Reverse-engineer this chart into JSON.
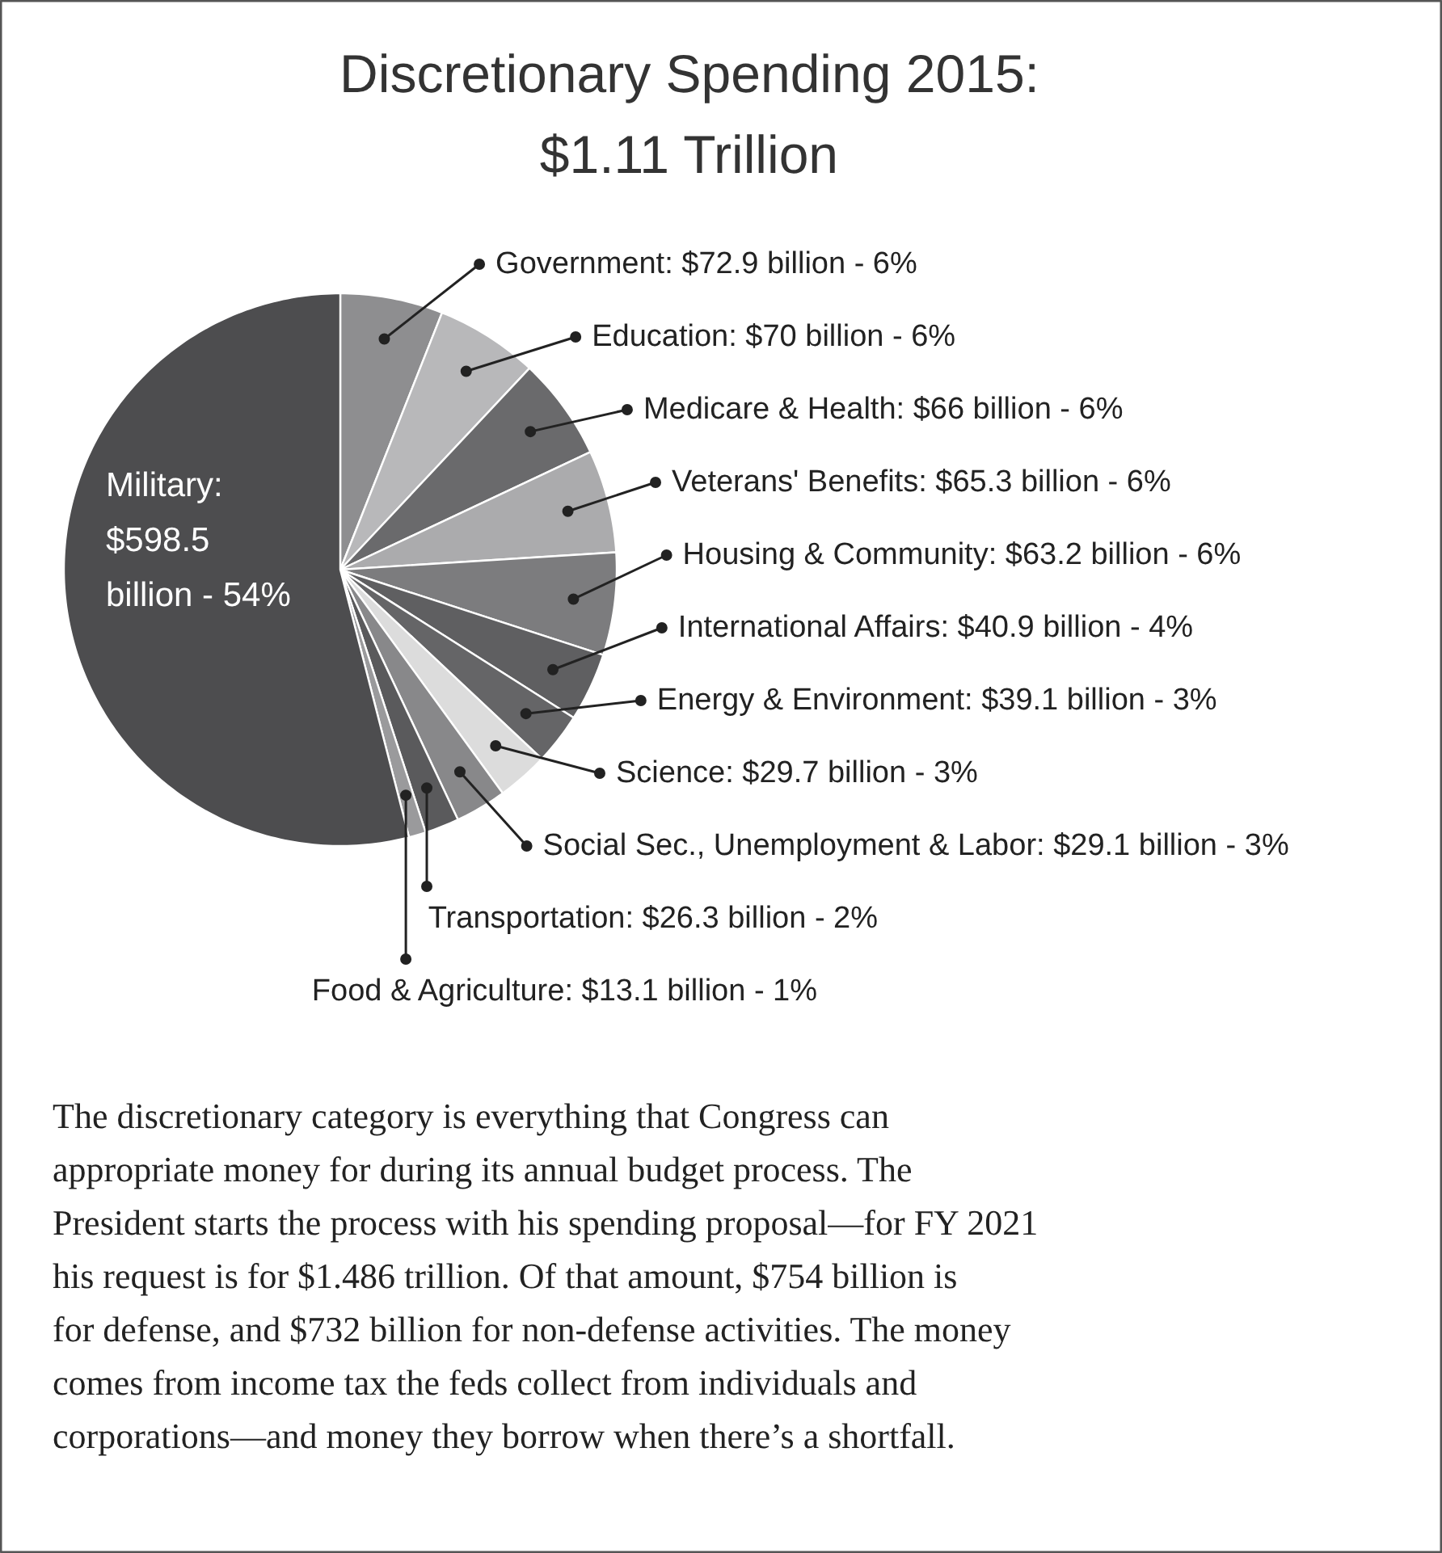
{
  "chart_data": {
    "type": "pie",
    "title": "Discretionary Spending 2015: $1.11 Trillion",
    "categories": [
      "Government: $72.9 billion - 6%",
      "Education: $70 billion - 6%",
      "Medicare & Health: $66 billion - 6%",
      "Veterans' Benefits: $65.3 billion - 6%",
      "Housing & Community: $63.2 billion - 6%",
      "International Affairs: $40.9 billion - 4%",
      "Energy & Environment: $39.1 billion - 3%",
      "Science: $29.7 billion - 3%",
      "Social Sec., Unemployment & Labor: $29.1 billion - 3%",
      "Transportation: $26.3 billion - 2%",
      "Food & Agriculture: $13.1 billion - 1%",
      "Military: $598.5 billion - 54%"
    ],
    "values": [
      6,
      6,
      6,
      6,
      6,
      4,
      3,
      3,
      3,
      2,
      1,
      54
    ],
    "colors": [
      "#8e8e90",
      "#b8b8ba",
      "#6a6a6c",
      "#ababad",
      "#7c7c7e",
      "#5f5f61",
      "#656567",
      "#dcdcdc",
      "#88888a",
      "#5a5a5c",
      "#9a9a9c",
      "#4d4d4f"
    ],
    "annotations": [
      "The discretionary category is everything that Congress can appropriate money for during its annual budget process. The President starts the process with his spending proposal—for FY 2021 his request is for $1.486 trillion. Of that amount, $754 billion is for defense, and $732 billion for non-defense activities. The money comes from income tax the feds collect from individuals and corporations—and money they borrow when there’s a shortfall."
    ]
  }
}
